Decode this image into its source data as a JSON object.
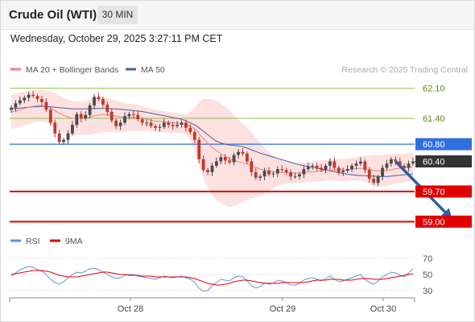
{
  "header": {
    "title": "Crude Oil (WTI)",
    "timeframe": "30 MIN",
    "datetime": "Wednesday, October 29, 2025 3:27:11 PM CET"
  },
  "colors": {
    "up_candle": "#4a4a4a",
    "down_candle": "#c0392b",
    "ma20": "#f08080",
    "bollinger_fill": "#fcd6d6",
    "ma50": "#4a5f9e",
    "resistance_green": "#8bc34a",
    "level_red": "#e00000",
    "level_blue": "#2f6fdf",
    "price_dark": "#333333",
    "arrow": "#2b5fa3",
    "rsi": "#6a8fe0",
    "rsi_ma": "#e00000"
  },
  "chart_data": [
    {
      "type": "line",
      "title": "",
      "legend": [
        {
          "name": "MA 20 + Bollinger Bands"
        },
        {
          "name": "MA 50"
        }
      ],
      "legend_placement": "top-left",
      "watermark": "Research © 2025 Trading Central",
      "x_ticks": [
        "Oct 28",
        "Oct 29",
        "Oct 30"
      ],
      "ylim": [
        58.95,
        62.28
      ],
      "levels": [
        {
          "value": 62.1,
          "label": "62.10",
          "kind": "resistance",
          "color": "#8bc34a"
        },
        {
          "value": 61.4,
          "label": "61.40",
          "kind": "resistance",
          "color": "#8bc34a"
        },
        {
          "value": 60.8,
          "label": "60.80",
          "kind": "pivot",
          "color": "#2f6fdf"
        },
        {
          "value": 60.4,
          "label": "60.40",
          "kind": "last_price",
          "color": "#333333"
        },
        {
          "value": 59.7,
          "label": "59.70",
          "kind": "support",
          "color": "#e00000"
        },
        {
          "value": 59.0,
          "label": "59.00",
          "kind": "support",
          "color": "#e00000"
        }
      ],
      "forecast_arrow": {
        "from_index": 88,
        "from_value": 60.4,
        "to_index": 101,
        "to_value": 59.05
      },
      "close": [
        61.65,
        61.75,
        61.82,
        61.88,
        61.95,
        61.92,
        61.85,
        61.78,
        61.6,
        61.3,
        61.05,
        60.85,
        60.9,
        61.05,
        61.25,
        61.5,
        61.4,
        61.48,
        61.7,
        61.9,
        61.85,
        61.72,
        61.55,
        61.35,
        61.22,
        61.3,
        61.45,
        61.5,
        61.48,
        61.38,
        61.3,
        61.3,
        61.22,
        61.18,
        61.2,
        61.3,
        61.25,
        61.22,
        61.25,
        61.3,
        61.18,
        61.08,
        60.9,
        60.45,
        60.2,
        60.15,
        60.3,
        60.4,
        60.5,
        60.42,
        60.38,
        60.55,
        60.62,
        60.58,
        60.4,
        60.15,
        60.02,
        60.05,
        60.18,
        60.1,
        60.12,
        60.22,
        60.2,
        60.15,
        60.05,
        60.05,
        60.1,
        60.22,
        60.28,
        60.3,
        60.25,
        60.2,
        60.3,
        60.4,
        60.25,
        60.15,
        60.18,
        60.22,
        60.3,
        60.35,
        60.4,
        60.2,
        60.0,
        59.9,
        60.05,
        60.25,
        60.35,
        60.45,
        60.4,
        60.3,
        60.25,
        60.35,
        60.4
      ],
      "ma20": [
        61.55,
        61.57,
        61.6,
        61.63,
        61.66,
        61.68,
        61.7,
        61.7,
        61.68,
        61.64,
        61.58,
        61.52,
        61.47,
        61.43,
        61.4,
        61.4,
        61.4,
        61.41,
        61.43,
        61.46,
        61.48,
        61.49,
        61.48,
        61.47,
        61.45,
        61.43,
        61.42,
        61.42,
        61.42,
        61.41,
        61.4,
        61.38,
        61.36,
        61.34,
        61.33,
        61.32,
        61.31,
        61.3,
        61.29,
        61.28,
        61.26,
        61.22,
        61.16,
        61.05,
        60.93,
        60.82,
        60.73,
        60.65,
        60.58,
        60.52,
        60.46,
        60.42,
        60.39,
        60.37,
        60.34,
        60.3,
        60.26,
        60.22,
        60.2,
        60.18,
        60.16,
        60.15,
        60.14,
        60.14,
        60.13,
        60.13,
        60.13,
        60.14,
        60.15,
        60.16,
        60.17,
        60.18,
        60.19,
        60.2,
        60.2,
        60.2,
        60.2,
        60.21,
        60.22,
        60.23,
        60.24,
        60.23,
        60.21,
        60.19,
        60.18,
        60.18,
        60.19,
        60.21,
        60.23,
        60.24,
        60.25,
        60.26,
        60.28
      ],
      "bb_upper": [
        61.95,
        61.97,
        62.0,
        62.02,
        62.05,
        62.06,
        62.07,
        62.07,
        62.05,
        62.02,
        61.98,
        61.93,
        61.88,
        61.83,
        61.8,
        61.79,
        61.78,
        61.8,
        61.84,
        61.88,
        61.9,
        61.9,
        61.88,
        61.85,
        61.82,
        61.78,
        61.75,
        61.74,
        61.73,
        61.71,
        61.68,
        61.65,
        61.62,
        61.6,
        61.58,
        61.56,
        61.55,
        61.54,
        61.52,
        61.5,
        61.5,
        61.55,
        61.64,
        61.78,
        61.85,
        61.86,
        61.84,
        61.8,
        61.74,
        61.67,
        61.58,
        61.48,
        61.38,
        61.28,
        61.18,
        61.07,
        60.95,
        60.84,
        60.73,
        60.63,
        60.54,
        60.47,
        60.42,
        60.39,
        60.37,
        60.36,
        60.36,
        60.37,
        60.38,
        60.4,
        60.41,
        60.42,
        60.43,
        60.44,
        60.45,
        60.46,
        60.46,
        60.47,
        60.48,
        60.5,
        60.52,
        60.53,
        60.54,
        60.55,
        60.55,
        60.55,
        60.56,
        60.57,
        60.58,
        60.58,
        60.58,
        60.59,
        60.6
      ],
      "bb_lower": [
        61.15,
        61.17,
        61.2,
        61.24,
        61.27,
        61.3,
        61.33,
        61.33,
        61.31,
        61.26,
        61.18,
        61.11,
        61.06,
        61.03,
        61.0,
        61.01,
        61.02,
        61.02,
        61.02,
        61.04,
        61.06,
        61.08,
        61.08,
        61.09,
        61.08,
        61.08,
        61.09,
        61.1,
        61.11,
        61.11,
        61.12,
        61.11,
        61.1,
        61.08,
        61.08,
        61.08,
        61.07,
        61.06,
        61.06,
        61.06,
        61.02,
        60.89,
        60.68,
        60.32,
        60.01,
        59.78,
        59.62,
        59.5,
        59.42,
        59.37,
        59.34,
        59.36,
        59.4,
        59.46,
        59.5,
        59.53,
        59.57,
        59.6,
        59.67,
        59.73,
        59.78,
        59.83,
        59.86,
        59.89,
        59.89,
        59.9,
        59.9,
        59.91,
        59.92,
        59.92,
        59.93,
        59.94,
        59.95,
        59.96,
        59.95,
        59.94,
        59.94,
        59.95,
        59.96,
        59.96,
        59.96,
        59.93,
        59.88,
        59.83,
        59.81,
        59.81,
        59.82,
        59.85,
        59.88,
        59.9,
        59.92,
        59.93,
        59.96
      ],
      "ma50": [
        61.62,
        61.63,
        61.64,
        61.65,
        61.66,
        61.67,
        61.67,
        61.68,
        61.68,
        61.67,
        61.66,
        61.65,
        61.64,
        61.63,
        61.62,
        61.62,
        61.62,
        61.62,
        61.62,
        61.63,
        61.63,
        61.63,
        61.63,
        61.62,
        61.62,
        61.61,
        61.6,
        61.59,
        61.58,
        61.57,
        61.56,
        61.54,
        61.52,
        61.5,
        61.48,
        61.46,
        61.44,
        61.42,
        61.4,
        61.38,
        61.34,
        61.3,
        61.25,
        61.18,
        61.1,
        61.02,
        60.94,
        60.87,
        60.83,
        60.8,
        60.78,
        60.77,
        60.76,
        60.74,
        60.71,
        60.67,
        60.63,
        60.59,
        60.56,
        60.53,
        60.5,
        60.47,
        60.44,
        60.41,
        60.38,
        60.35,
        60.32,
        60.3,
        60.28,
        60.26,
        60.24,
        60.22,
        60.2,
        60.18,
        60.16,
        60.14,
        60.12,
        60.1,
        60.09,
        60.08,
        60.07,
        60.07,
        60.06,
        60.06,
        60.05,
        60.05,
        60.05,
        60.06,
        60.07,
        60.08,
        60.09,
        60.1,
        60.11
      ]
    },
    {
      "type": "line",
      "title": "",
      "legend": [
        {
          "name": "RSI"
        },
        {
          "name": "9MA"
        }
      ],
      "legend_placement": "top-left",
      "ylim": [
        25,
        75
      ],
      "y_ticks": [
        70,
        50,
        30
      ],
      "series": [
        {
          "name": "RSI",
          "values": [
            48,
            52,
            56,
            58,
            60,
            59,
            56,
            54,
            50,
            44,
            40,
            38,
            41,
            46,
            50,
            53,
            52,
            54,
            57,
            58,
            56,
            53,
            50,
            47,
            45,
            46,
            49,
            50,
            50,
            48,
            47,
            46,
            45,
            44,
            46,
            48,
            47,
            46,
            47,
            48,
            46,
            44,
            40,
            33,
            29,
            30,
            36,
            40,
            44,
            43,
            42,
            46,
            48,
            47,
            42,
            36,
            33,
            35,
            40,
            38,
            39,
            43,
            42,
            40,
            37,
            37,
            39,
            43,
            45,
            46,
            44,
            42,
            45,
            48,
            44,
            41,
            42,
            44,
            46,
            48,
            50,
            44,
            40,
            38,
            42,
            47,
            50,
            53,
            52,
            49,
            47,
            52,
            57
          ]
        },
        {
          "name": "9MA",
          "values": [
            50,
            51,
            52,
            53,
            54,
            55,
            55,
            55,
            54,
            53,
            51,
            49,
            48,
            47,
            47,
            47,
            48,
            49,
            50,
            51,
            52,
            53,
            53,
            52,
            51,
            50,
            50,
            49,
            49,
            49,
            48,
            48,
            48,
            47,
            47,
            47,
            47,
            47,
            47,
            47,
            47,
            46,
            45,
            43,
            41,
            39,
            38,
            37,
            37,
            38,
            39,
            41,
            42,
            43,
            43,
            42,
            41,
            40,
            39,
            39,
            39,
            39,
            40,
            40,
            40,
            40,
            40,
            40,
            41,
            42,
            43,
            43,
            43,
            44,
            44,
            44,
            43,
            43,
            43,
            44,
            45,
            45,
            45,
            44,
            44,
            44,
            45,
            46,
            47,
            48,
            49,
            50,
            51
          ]
        }
      ]
    }
  ]
}
